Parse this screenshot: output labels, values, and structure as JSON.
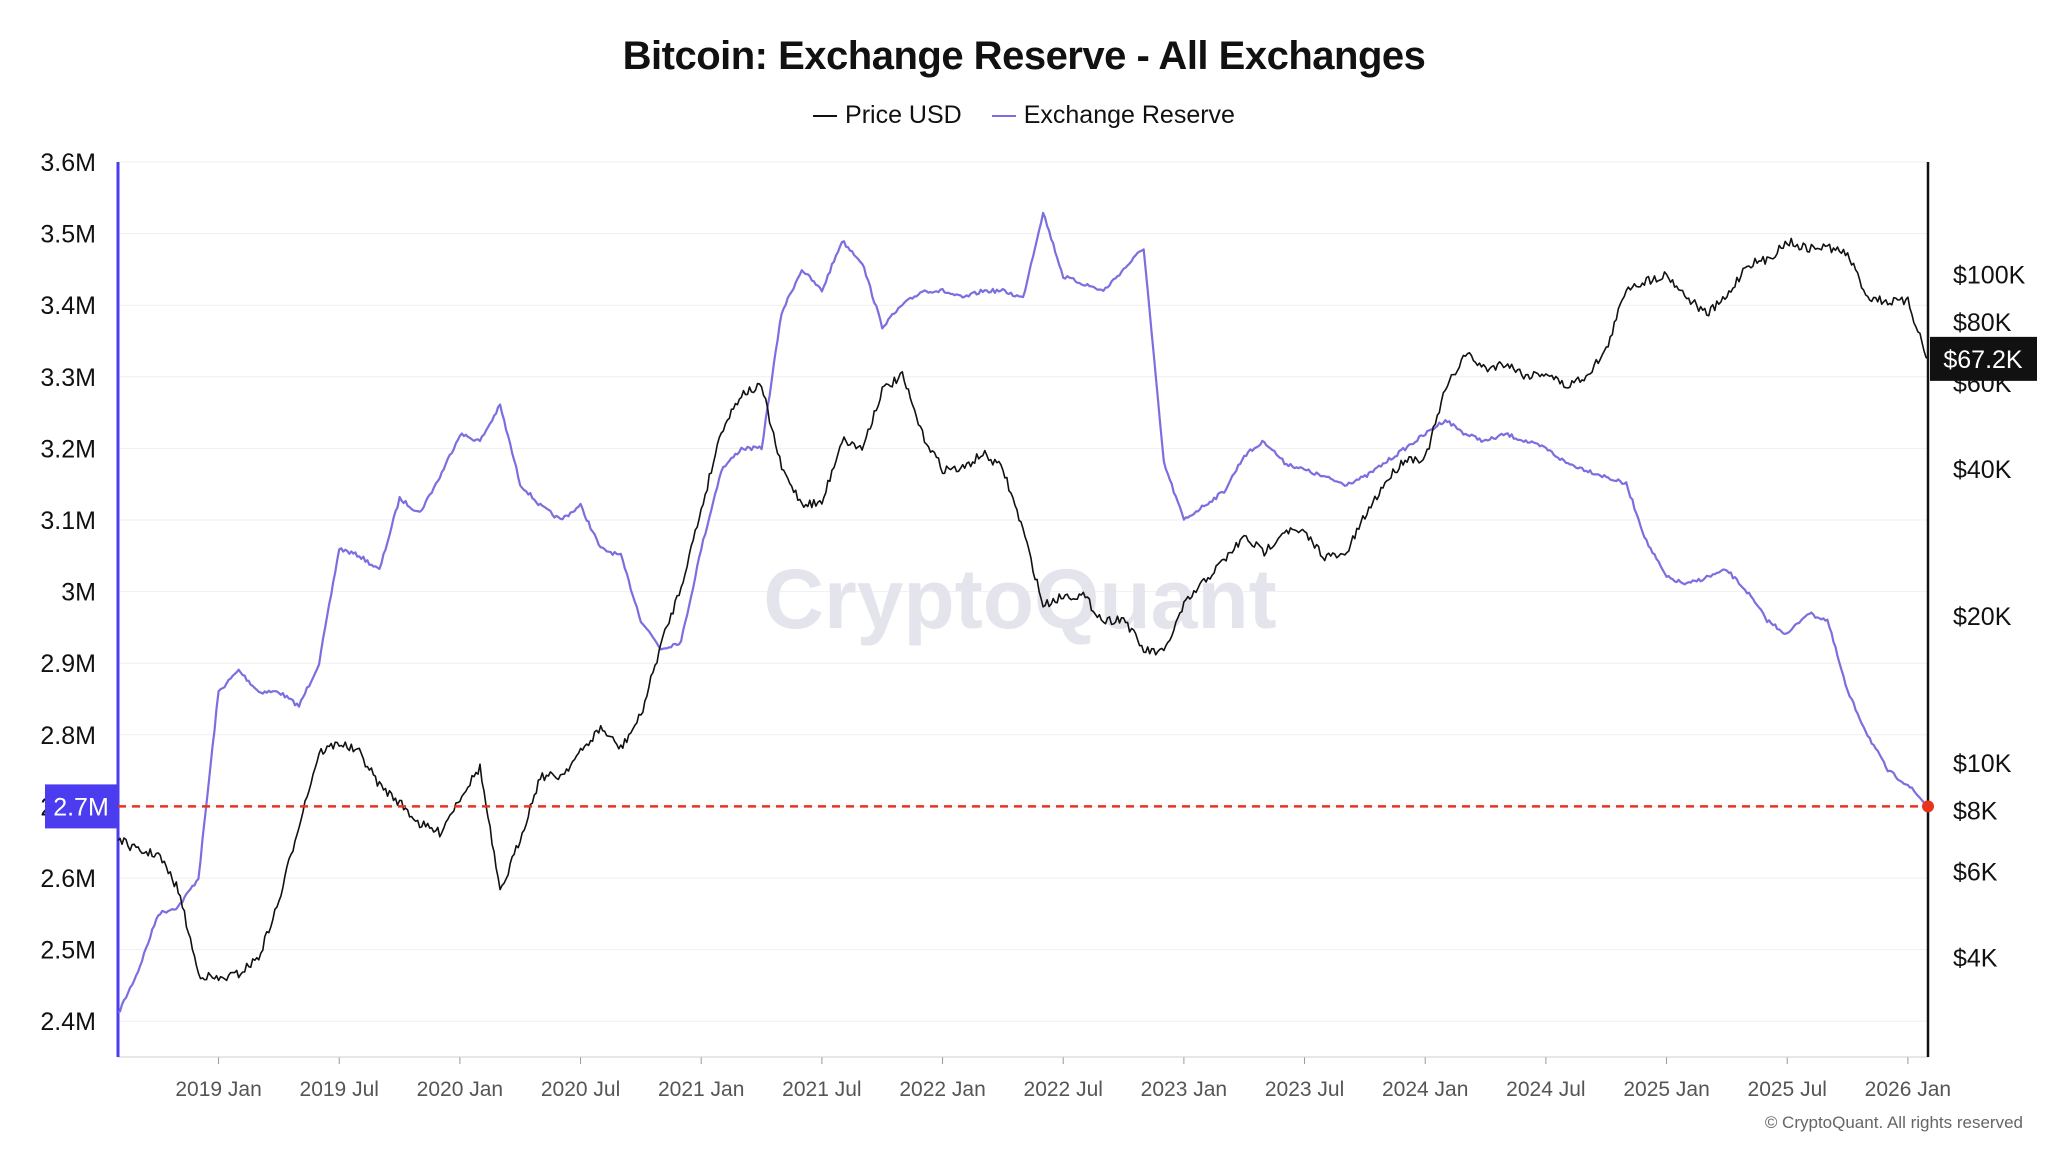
{
  "title": "Bitcoin: Exchange Reserve - All Exchanges",
  "legend": [
    {
      "label": "Price USD",
      "color": "#111111"
    },
    {
      "label": "Exchange Reserve",
      "color": "#7b6fe0"
    }
  ],
  "copyright": "© CryptoQuant. All rights reserved",
  "colors": {
    "price": "#111111",
    "reserve": "#7b6fe0",
    "marker": "#e8341c",
    "reserve_badge": "#4b3cf0",
    "price_badge": "#111111",
    "grid": "#efefef",
    "watermark": "#e4e4ec"
  },
  "chart_data": {
    "type": "line",
    "title": "Bitcoin: Exchange Reserve - All Exchanges",
    "watermark": "CryptoQuant",
    "x_range": [
      "2018-08",
      "2026-02"
    ],
    "x_ticks": [
      {
        "date": "2019-01",
        "label": "2019 Jan"
      },
      {
        "date": "2019-07",
        "label": "2019 Jul"
      },
      {
        "date": "2020-01",
        "label": "2020 Jan"
      },
      {
        "date": "2020-07",
        "label": "2020 Jul"
      },
      {
        "date": "2021-01",
        "label": "2021 Jan"
      },
      {
        "date": "2021-07",
        "label": "2021 Jul"
      },
      {
        "date": "2022-01",
        "label": "2022 Jan"
      },
      {
        "date": "2022-07",
        "label": "2022 Jul"
      },
      {
        "date": "2023-01",
        "label": "2023 Jan"
      },
      {
        "date": "2023-07",
        "label": "2023 Jul"
      },
      {
        "date": "2024-01",
        "label": "2024 Jan"
      },
      {
        "date": "2024-07",
        "label": "2024 Jul"
      },
      {
        "date": "2025-01",
        "label": "2025 Jan"
      },
      {
        "date": "2025-07",
        "label": "2025 Jul"
      },
      {
        "date": "2026-01",
        "label": "2026 Jan"
      }
    ],
    "left_axis": {
      "name": "Exchange Reserve",
      "unit": "BTC",
      "range": [
        2.35,
        3.6
      ],
      "ticks": [
        {
          "value": 3.6,
          "label": "3.6M"
        },
        {
          "value": 3.5,
          "label": "3.5M"
        },
        {
          "value": 3.4,
          "label": "3.4M"
        },
        {
          "value": 3.3,
          "label": "3.3M"
        },
        {
          "value": 3.2,
          "label": "3.2M"
        },
        {
          "value": 3.1,
          "label": "3.1M"
        },
        {
          "value": 3.0,
          "label": "3M"
        },
        {
          "value": 2.9,
          "label": "2.9M"
        },
        {
          "value": 2.8,
          "label": "2.8M"
        },
        {
          "value": 2.7,
          "label": "2.7M"
        },
        {
          "value": 2.6,
          "label": "2.6M"
        },
        {
          "value": 2.5,
          "label": "2.5M"
        },
        {
          "value": 2.4,
          "label": "2.4M"
        }
      ]
    },
    "right_axis": {
      "name": "Price USD",
      "scale": "log",
      "range": [
        2500,
        170000
      ],
      "ticks": [
        {
          "value": 100000,
          "label": "$100K"
        },
        {
          "value": 80000,
          "label": "$80K"
        },
        {
          "value": 60000,
          "label": "$60K"
        },
        {
          "value": 40000,
          "label": "$40K"
        },
        {
          "value": 20000,
          "label": "$20K"
        },
        {
          "value": 10000,
          "label": "$10K"
        },
        {
          "value": 8000,
          "label": "$8K"
        },
        {
          "value": 6000,
          "label": "$6K"
        },
        {
          "value": 4000,
          "label": "$4K"
        }
      ]
    },
    "current_reserve": {
      "value": 2.7,
      "label": "2.7M"
    },
    "current_price": {
      "value": 67200,
      "label": "$67.2K"
    },
    "reference_line": {
      "axis": "left",
      "value": 2.7,
      "style": "dashed"
    },
    "series": [
      {
        "name": "Exchange Reserve",
        "axis": "left",
        "unit": "M BTC",
        "points": [
          [
            "2018-08",
            2.41
          ],
          [
            "2018-09",
            2.47
          ],
          [
            "2018-10",
            2.55
          ],
          [
            "2018-11",
            2.56
          ],
          [
            "2018-12",
            2.6
          ],
          [
            "2019-01",
            2.86
          ],
          [
            "2019-02",
            2.89
          ],
          [
            "2019-03",
            2.86
          ],
          [
            "2019-04",
            2.86
          ],
          [
            "2019-05",
            2.84
          ],
          [
            "2019-06",
            2.9
          ],
          [
            "2019-07",
            3.06
          ],
          [
            "2019-08",
            3.05
          ],
          [
            "2019-09",
            3.03
          ],
          [
            "2019-10",
            3.13
          ],
          [
            "2019-11",
            3.11
          ],
          [
            "2019-12",
            3.16
          ],
          [
            "2020-01",
            3.22
          ],
          [
            "2020-02",
            3.21
          ],
          [
            "2020-03",
            3.26
          ],
          [
            "2020-04",
            3.15
          ],
          [
            "2020-05",
            3.12
          ],
          [
            "2020-06",
            3.1
          ],
          [
            "2020-07",
            3.12
          ],
          [
            "2020-08",
            3.06
          ],
          [
            "2020-09",
            3.05
          ],
          [
            "2020-10",
            2.96
          ],
          [
            "2020-11",
            2.92
          ],
          [
            "2020-12",
            2.93
          ],
          [
            "2021-01",
            3.06
          ],
          [
            "2021-02",
            3.17
          ],
          [
            "2021-03",
            3.2
          ],
          [
            "2021-04",
            3.2
          ],
          [
            "2021-05",
            3.39
          ],
          [
            "2021-06",
            3.45
          ],
          [
            "2021-07",
            3.42
          ],
          [
            "2021-08",
            3.49
          ],
          [
            "2021-09",
            3.46
          ],
          [
            "2021-10",
            3.37
          ],
          [
            "2021-11",
            3.4
          ],
          [
            "2021-12",
            3.42
          ],
          [
            "2022-01",
            3.42
          ],
          [
            "2022-02",
            3.41
          ],
          [
            "2022-03",
            3.42
          ],
          [
            "2022-04",
            3.42
          ],
          [
            "2022-05",
            3.41
          ],
          [
            "2022-06",
            3.53
          ],
          [
            "2022-07",
            3.44
          ],
          [
            "2022-08",
            3.43
          ],
          [
            "2022-09",
            3.42
          ],
          [
            "2022-10",
            3.45
          ],
          [
            "2022-11",
            3.48
          ],
          [
            "2022-12",
            3.18
          ],
          [
            "2023-01",
            3.1
          ],
          [
            "2023-02",
            3.12
          ],
          [
            "2023-03",
            3.14
          ],
          [
            "2023-04",
            3.19
          ],
          [
            "2023-05",
            3.21
          ],
          [
            "2023-06",
            3.18
          ],
          [
            "2023-07",
            3.17
          ],
          [
            "2023-08",
            3.16
          ],
          [
            "2023-09",
            3.15
          ],
          [
            "2023-10",
            3.16
          ],
          [
            "2023-11",
            3.18
          ],
          [
            "2023-12",
            3.2
          ],
          [
            "2024-01",
            3.22
          ],
          [
            "2024-02",
            3.24
          ],
          [
            "2024-03",
            3.22
          ],
          [
            "2024-04",
            3.21
          ],
          [
            "2024-05",
            3.22
          ],
          [
            "2024-06",
            3.21
          ],
          [
            "2024-07",
            3.2
          ],
          [
            "2024-08",
            3.18
          ],
          [
            "2024-09",
            3.17
          ],
          [
            "2024-10",
            3.16
          ],
          [
            "2024-11",
            3.15
          ],
          [
            "2024-12",
            3.07
          ],
          [
            "2025-01",
            3.02
          ],
          [
            "2025-02",
            3.01
          ],
          [
            "2025-03",
            3.02
          ],
          [
            "2025-04",
            3.03
          ],
          [
            "2025-05",
            3.0
          ],
          [
            "2025-06",
            2.96
          ],
          [
            "2025-07",
            2.94
          ],
          [
            "2025-08",
            2.97
          ],
          [
            "2025-09",
            2.96
          ],
          [
            "2025-10",
            2.86
          ],
          [
            "2025-11",
            2.8
          ],
          [
            "2025-12",
            2.75
          ],
          [
            "2026-01",
            2.73
          ],
          [
            "2026-02",
            2.7
          ]
        ]
      },
      {
        "name": "Price USD",
        "axis": "right",
        "unit": "USD",
        "points": [
          [
            "2018-08",
            7000
          ],
          [
            "2018-09",
            6600
          ],
          [
            "2018-10",
            6500
          ],
          [
            "2018-11",
            5500
          ],
          [
            "2018-12",
            3700
          ],
          [
            "2019-01",
            3600
          ],
          [
            "2019-02",
            3700
          ],
          [
            "2019-03",
            4000
          ],
          [
            "2019-04",
            5200
          ],
          [
            "2019-05",
            7500
          ],
          [
            "2019-06",
            10500
          ],
          [
            "2019-07",
            11000
          ],
          [
            "2019-08",
            10500
          ],
          [
            "2019-09",
            9000
          ],
          [
            "2019-10",
            8300
          ],
          [
            "2019-11",
            7500
          ],
          [
            "2019-12",
            7200
          ],
          [
            "2020-01",
            8500
          ],
          [
            "2020-02",
            9800
          ],
          [
            "2020-03",
            5400
          ],
          [
            "2020-04",
            7000
          ],
          [
            "2020-05",
            9400
          ],
          [
            "2020-06",
            9400
          ],
          [
            "2020-07",
            10500
          ],
          [
            "2020-08",
            11800
          ],
          [
            "2020-09",
            10700
          ],
          [
            "2020-10",
            12500
          ],
          [
            "2020-11",
            17500
          ],
          [
            "2020-12",
            23000
          ],
          [
            "2021-01",
            33000
          ],
          [
            "2021-02",
            48000
          ],
          [
            "2021-03",
            57000
          ],
          [
            "2021-04",
            59000
          ],
          [
            "2021-05",
            40000
          ],
          [
            "2021-06",
            34000
          ],
          [
            "2021-07",
            34000
          ],
          [
            "2021-08",
            46000
          ],
          [
            "2021-09",
            44000
          ],
          [
            "2021-10",
            58000
          ],
          [
            "2021-11",
            62000
          ],
          [
            "2021-12",
            47000
          ],
          [
            "2022-01",
            40000
          ],
          [
            "2022-02",
            40000
          ],
          [
            "2022-03",
            43000
          ],
          [
            "2022-04",
            40000
          ],
          [
            "2022-05",
            30000
          ],
          [
            "2022-06",
            21000
          ],
          [
            "2022-07",
            22000
          ],
          [
            "2022-08",
            22000
          ],
          [
            "2022-09",
            19500
          ],
          [
            "2022-10",
            19800
          ],
          [
            "2022-11",
            17000
          ],
          [
            "2022-12",
            16800
          ],
          [
            "2023-01",
            21000
          ],
          [
            "2023-02",
            23500
          ],
          [
            "2023-03",
            26000
          ],
          [
            "2023-04",
            29000
          ],
          [
            "2023-05",
            27000
          ],
          [
            "2023-06",
            30000
          ],
          [
            "2023-07",
            29500
          ],
          [
            "2023-08",
            26500
          ],
          [
            "2023-09",
            26500
          ],
          [
            "2023-10",
            32000
          ],
          [
            "2023-11",
            37500
          ],
          [
            "2023-12",
            42000
          ],
          [
            "2024-01",
            42000
          ],
          [
            "2024-02",
            58000
          ],
          [
            "2024-03",
            69000
          ],
          [
            "2024-04",
            64000
          ],
          [
            "2024-05",
            66000
          ],
          [
            "2024-06",
            62000
          ],
          [
            "2024-07",
            63000
          ],
          [
            "2024-08",
            59000
          ],
          [
            "2024-09",
            62000
          ],
          [
            "2024-10",
            70000
          ],
          [
            "2024-11",
            94000
          ],
          [
            "2024-12",
            97000
          ],
          [
            "2025-01",
            100000
          ],
          [
            "2025-02",
            90000
          ],
          [
            "2025-03",
            83000
          ],
          [
            "2025-04",
            90000
          ],
          [
            "2025-05",
            105000
          ],
          [
            "2025-06",
            107000
          ],
          [
            "2025-07",
            117000
          ],
          [
            "2025-08",
            113000
          ],
          [
            "2025-09",
            114000
          ],
          [
            "2025-10",
            110000
          ],
          [
            "2025-11",
            90000
          ],
          [
            "2025-12",
            88000
          ],
          [
            "2026-01",
            88000
          ],
          [
            "2026-02",
            67200
          ]
        ]
      }
    ]
  }
}
